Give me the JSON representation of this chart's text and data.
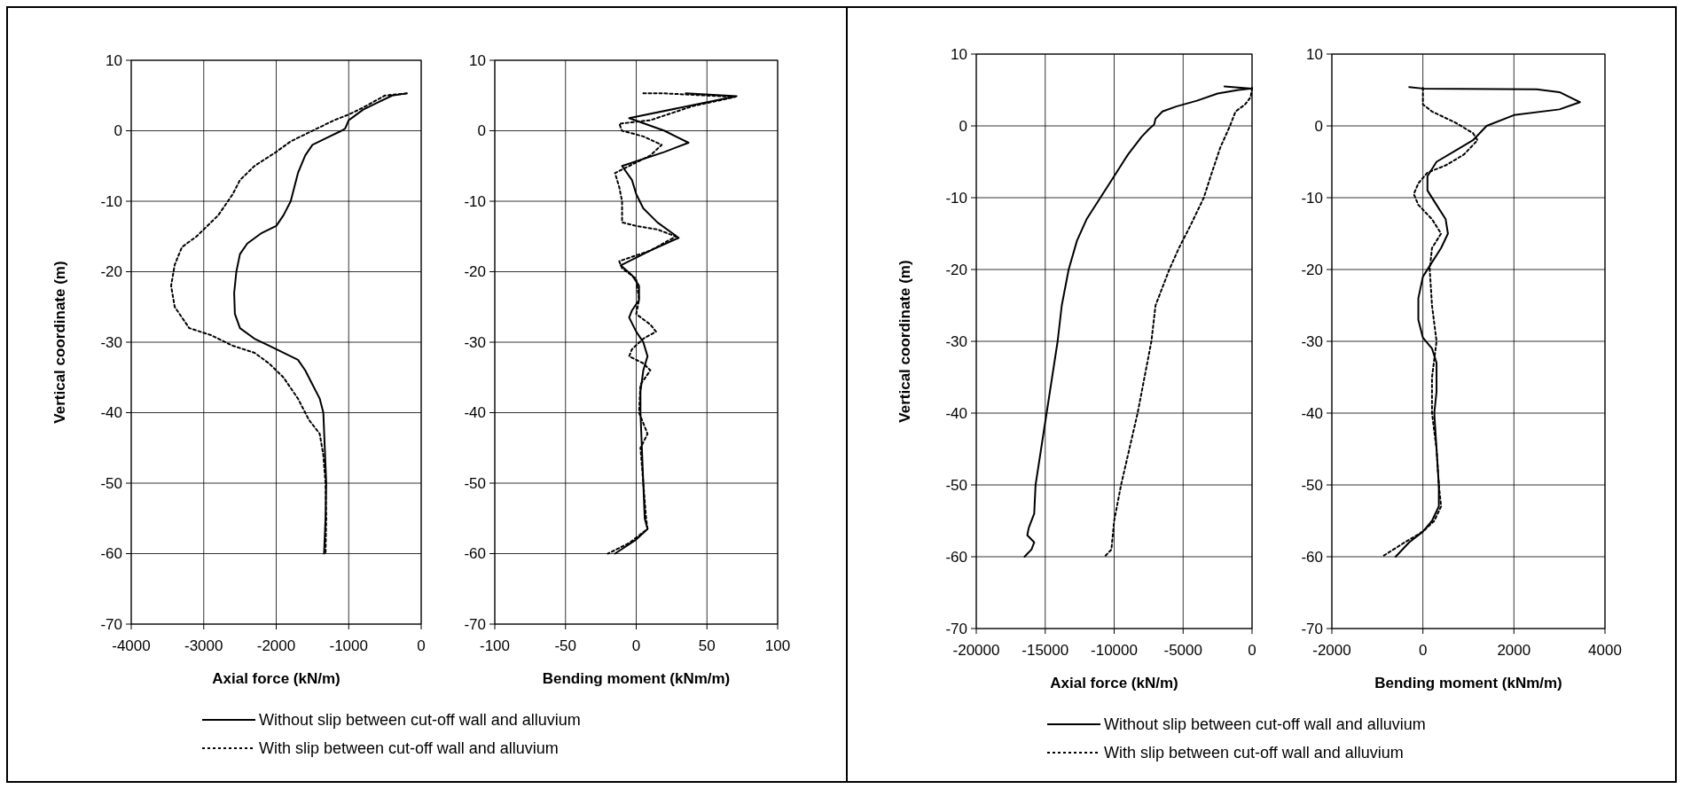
{
  "chart_data": [
    {
      "type": "line",
      "xlabel": "Axial force (kN/m)",
      "ylabel": "Vertical coordinate (m)",
      "xlim": [
        -4000,
        0
      ],
      "xticks": [
        -4000,
        -3000,
        -2000,
        -1000,
        0
      ],
      "ylim": [
        -70,
        10
      ],
      "yticks": [
        -70,
        -60,
        -50,
        -40,
        -30,
        -20,
        -10,
        0,
        10
      ],
      "grid": true,
      "legend": "bottom",
      "series": [
        {
          "name": "Without slip between cut-off wall and alluvium",
          "color": "#000000",
          "line_style": "solid",
          "x": [
            -200,
            -400,
            -600,
            -800,
            -1000,
            -1050,
            -1100,
            -1300,
            -1500,
            -1600,
            -1700,
            -1800,
            -1900,
            -2000,
            -2200,
            -2400,
            -2500,
            -2550,
            -2580,
            -2570,
            -2500,
            -2300,
            -2100,
            -1900,
            -1700,
            -1600,
            -1500,
            -1400,
            -1350,
            -1330,
            -1310,
            -1320,
            -1340
          ],
          "values": [
            5.3,
            5,
            4,
            3,
            1.5,
            0.3,
            0,
            -1,
            -2,
            -3.5,
            -6,
            -10,
            -12,
            -13.5,
            -14.5,
            -16,
            -17.5,
            -20,
            -23,
            -26,
            -28,
            -29.5,
            -30.5,
            -31.5,
            -32.5,
            -34,
            -36,
            -38,
            -40,
            -45,
            -50,
            -55,
            -60
          ]
        },
        {
          "name": "With slip between cut-off wall and alluvium",
          "color": "#000000",
          "line_style": "dotted",
          "x": [
            -200,
            -500,
            -800,
            -1000,
            -1200,
            -1500,
            -1800,
            -2000,
            -2300,
            -2500,
            -2600,
            -2800,
            -2950,
            -3100,
            -3300,
            -3400,
            -3450,
            -3400,
            -3200,
            -2900,
            -2600,
            -2300,
            -2100,
            -1900,
            -1700,
            -1550,
            -1400,
            -1350,
            -1320,
            -1310,
            -1320
          ],
          "values": [
            5.3,
            5,
            3.3,
            2.3,
            1.5,
            0,
            -1.5,
            -3,
            -5,
            -7,
            -9,
            -12,
            -13.5,
            -15,
            -16.5,
            -19,
            -22,
            -25,
            -28,
            -29,
            -30.5,
            -31.5,
            -33,
            -35,
            -38,
            -41,
            -43,
            -46,
            -50,
            -55,
            -60
          ]
        }
      ]
    },
    {
      "type": "line",
      "xlabel": "Bending moment (kNm/m)",
      "xlim": [
        -100,
        100
      ],
      "xticks": [
        -100,
        -50,
        0,
        50,
        100
      ],
      "ylim": [
        -70,
        10
      ],
      "yticks": [
        -70,
        -60,
        -50,
        -40,
        -30,
        -20,
        -10,
        0,
        10
      ],
      "grid": true,
      "series": [
        {
          "color": "#000000",
          "line_style": "solid",
          "x": [
            35,
            71,
            -5,
            20,
            37,
            20,
            -10,
            -3,
            0,
            5,
            15,
            30,
            10,
            -11,
            -3,
            2,
            2,
            -3,
            -5,
            0,
            5,
            8,
            5,
            3,
            3,
            4,
            5,
            6,
            8,
            0,
            -15
          ],
          "values": [
            5.3,
            4.9,
            1.8,
            0,
            -1.7,
            -3,
            -5,
            -7,
            -9,
            -11,
            -13,
            -15.2,
            -17,
            -19.1,
            -20.5,
            -22,
            -24,
            -25.5,
            -26.5,
            -28.5,
            -30,
            -32,
            -34,
            -37,
            -40,
            -45,
            -50,
            -55,
            -56.5,
            -58,
            -60
          ]
        },
        {
          "color": "#000000",
          "line_style": "dotted",
          "x": [
            5,
            20,
            50,
            70,
            40,
            10,
            -12,
            -10,
            5,
            18,
            10,
            -5,
            -15,
            -12,
            -10,
            -10,
            0,
            15,
            28,
            10,
            -12,
            -10,
            0,
            2,
            0,
            10,
            14,
            5,
            -3,
            -5,
            5,
            10,
            3,
            2,
            8,
            3,
            5,
            7,
            8,
            -5,
            -20
          ],
          "values": [
            5.3,
            5.3,
            5,
            4.8,
            3.5,
            1.5,
            1,
            0,
            -0.8,
            -2,
            -3.5,
            -5,
            -6,
            -8,
            -10,
            -13,
            -13.5,
            -14,
            -15,
            -17,
            -18.5,
            -19.5,
            -21,
            -24,
            -26,
            -27.5,
            -28.5,
            -29.5,
            -31,
            -32,
            -33,
            -34,
            -36,
            -40,
            -43,
            -45,
            -50,
            -55,
            -56.5,
            -58.5,
            -60
          ]
        }
      ]
    },
    {
      "type": "line",
      "xlabel": "Axial force (kN/m)",
      "ylabel": "Vertical coordinate (m)",
      "xlim": [
        -20000,
        0
      ],
      "xticks": [
        -20000,
        -15000,
        -10000,
        -5000,
        0
      ],
      "ylim": [
        -70,
        10
      ],
      "yticks": [
        -70,
        -60,
        -50,
        -40,
        -30,
        -20,
        -10,
        0,
        10
      ],
      "grid": true,
      "legend": "bottom",
      "series": [
        {
          "name": "Without slip between cut-off wall and alluvium",
          "color": "#000000",
          "line_style": "solid",
          "x": [
            -2000,
            0,
            -1000,
            -2500,
            -4000,
            -5500,
            -6500,
            -7000,
            -7100,
            -7500,
            -8000,
            -9000,
            -10000,
            -11000,
            -12000,
            -12700,
            -13300,
            -13800,
            -14100,
            -14500,
            -14900,
            -15300,
            -15700,
            -15800,
            -16200,
            -16300,
            -15800,
            -16000,
            -16500
          ],
          "values": [
            5.5,
            5.2,
            5,
            4.5,
            3.5,
            2.7,
            2,
            1,
            0.2,
            -0.5,
            -1.5,
            -4,
            -7,
            -10,
            -13,
            -16,
            -20,
            -25,
            -30,
            -35,
            -40,
            -45,
            -50,
            -54,
            -56,
            -57,
            -58,
            -59,
            -60
          ]
        },
        {
          "name": "With slip between cut-off wall and alluvium",
          "color": "#000000",
          "line_style": "dotted",
          "x": [
            0,
            -100,
            -500,
            -1200,
            -1600,
            -2300,
            -3000,
            -3500,
            -4500,
            -5300,
            -6000,
            -7000,
            -7300,
            -7800,
            -8300,
            -8900,
            -9500,
            -10000,
            -10200,
            -10700
          ],
          "values": [
            5.3,
            4,
            3,
            2,
            0,
            -3,
            -7,
            -10,
            -14,
            -17,
            -20,
            -25,
            -30,
            -35,
            -40,
            -45,
            -50,
            -55,
            -59,
            -60
          ]
        }
      ]
    },
    {
      "type": "line",
      "xlabel": "Bending moment (kNm/m)",
      "xlim": [
        -2000,
        4000
      ],
      "xticks": [
        -2000,
        0,
        2000,
        4000
      ],
      "ylim": [
        -70,
        10
      ],
      "yticks": [
        -70,
        -60,
        -50,
        -40,
        -30,
        -20,
        -10,
        0,
        10
      ],
      "grid": true,
      "series": [
        {
          "color": "#000000",
          "line_style": "solid",
          "x": [
            -300,
            0,
            2500,
            3000,
            3450,
            3000,
            2000,
            1400,
            1100,
            700,
            300,
            100,
            100,
            300,
            500,
            550,
            400,
            200,
            0,
            -100,
            -100,
            0,
            200,
            300,
            300,
            250,
            300,
            350,
            350,
            200,
            0,
            -300,
            -600
          ],
          "values": [
            5.4,
            5.2,
            5.1,
            4.7,
            3.3,
            2.3,
            1.5,
            0,
            -2,
            -3.5,
            -5,
            -7,
            -9,
            -11,
            -13,
            -15,
            -17,
            -19,
            -21,
            -24,
            -27,
            -29.5,
            -31,
            -33,
            -37,
            -40,
            -45,
            -50,
            -53,
            -55,
            -56.5,
            -58,
            -60
          ]
        },
        {
          "color": "#000000",
          "line_style": "dotted",
          "x": [
            0,
            0,
            0,
            200,
            700,
            1100,
            1200,
            900,
            500,
            100,
            -100,
            -200,
            -100,
            200,
            400,
            200,
            150,
            200,
            300,
            200,
            200,
            300,
            350,
            400,
            250,
            0,
            -400,
            -900
          ],
          "values": [
            5.3,
            4,
            3,
            2,
            0.5,
            -1,
            -2,
            -4,
            -5.5,
            -6.5,
            -8,
            -9.5,
            -11,
            -13,
            -15,
            -17,
            -20,
            -25,
            -30,
            -35,
            -40,
            -45,
            -50,
            -53,
            -55,
            -56.5,
            -58,
            -60
          ]
        }
      ]
    }
  ]
}
